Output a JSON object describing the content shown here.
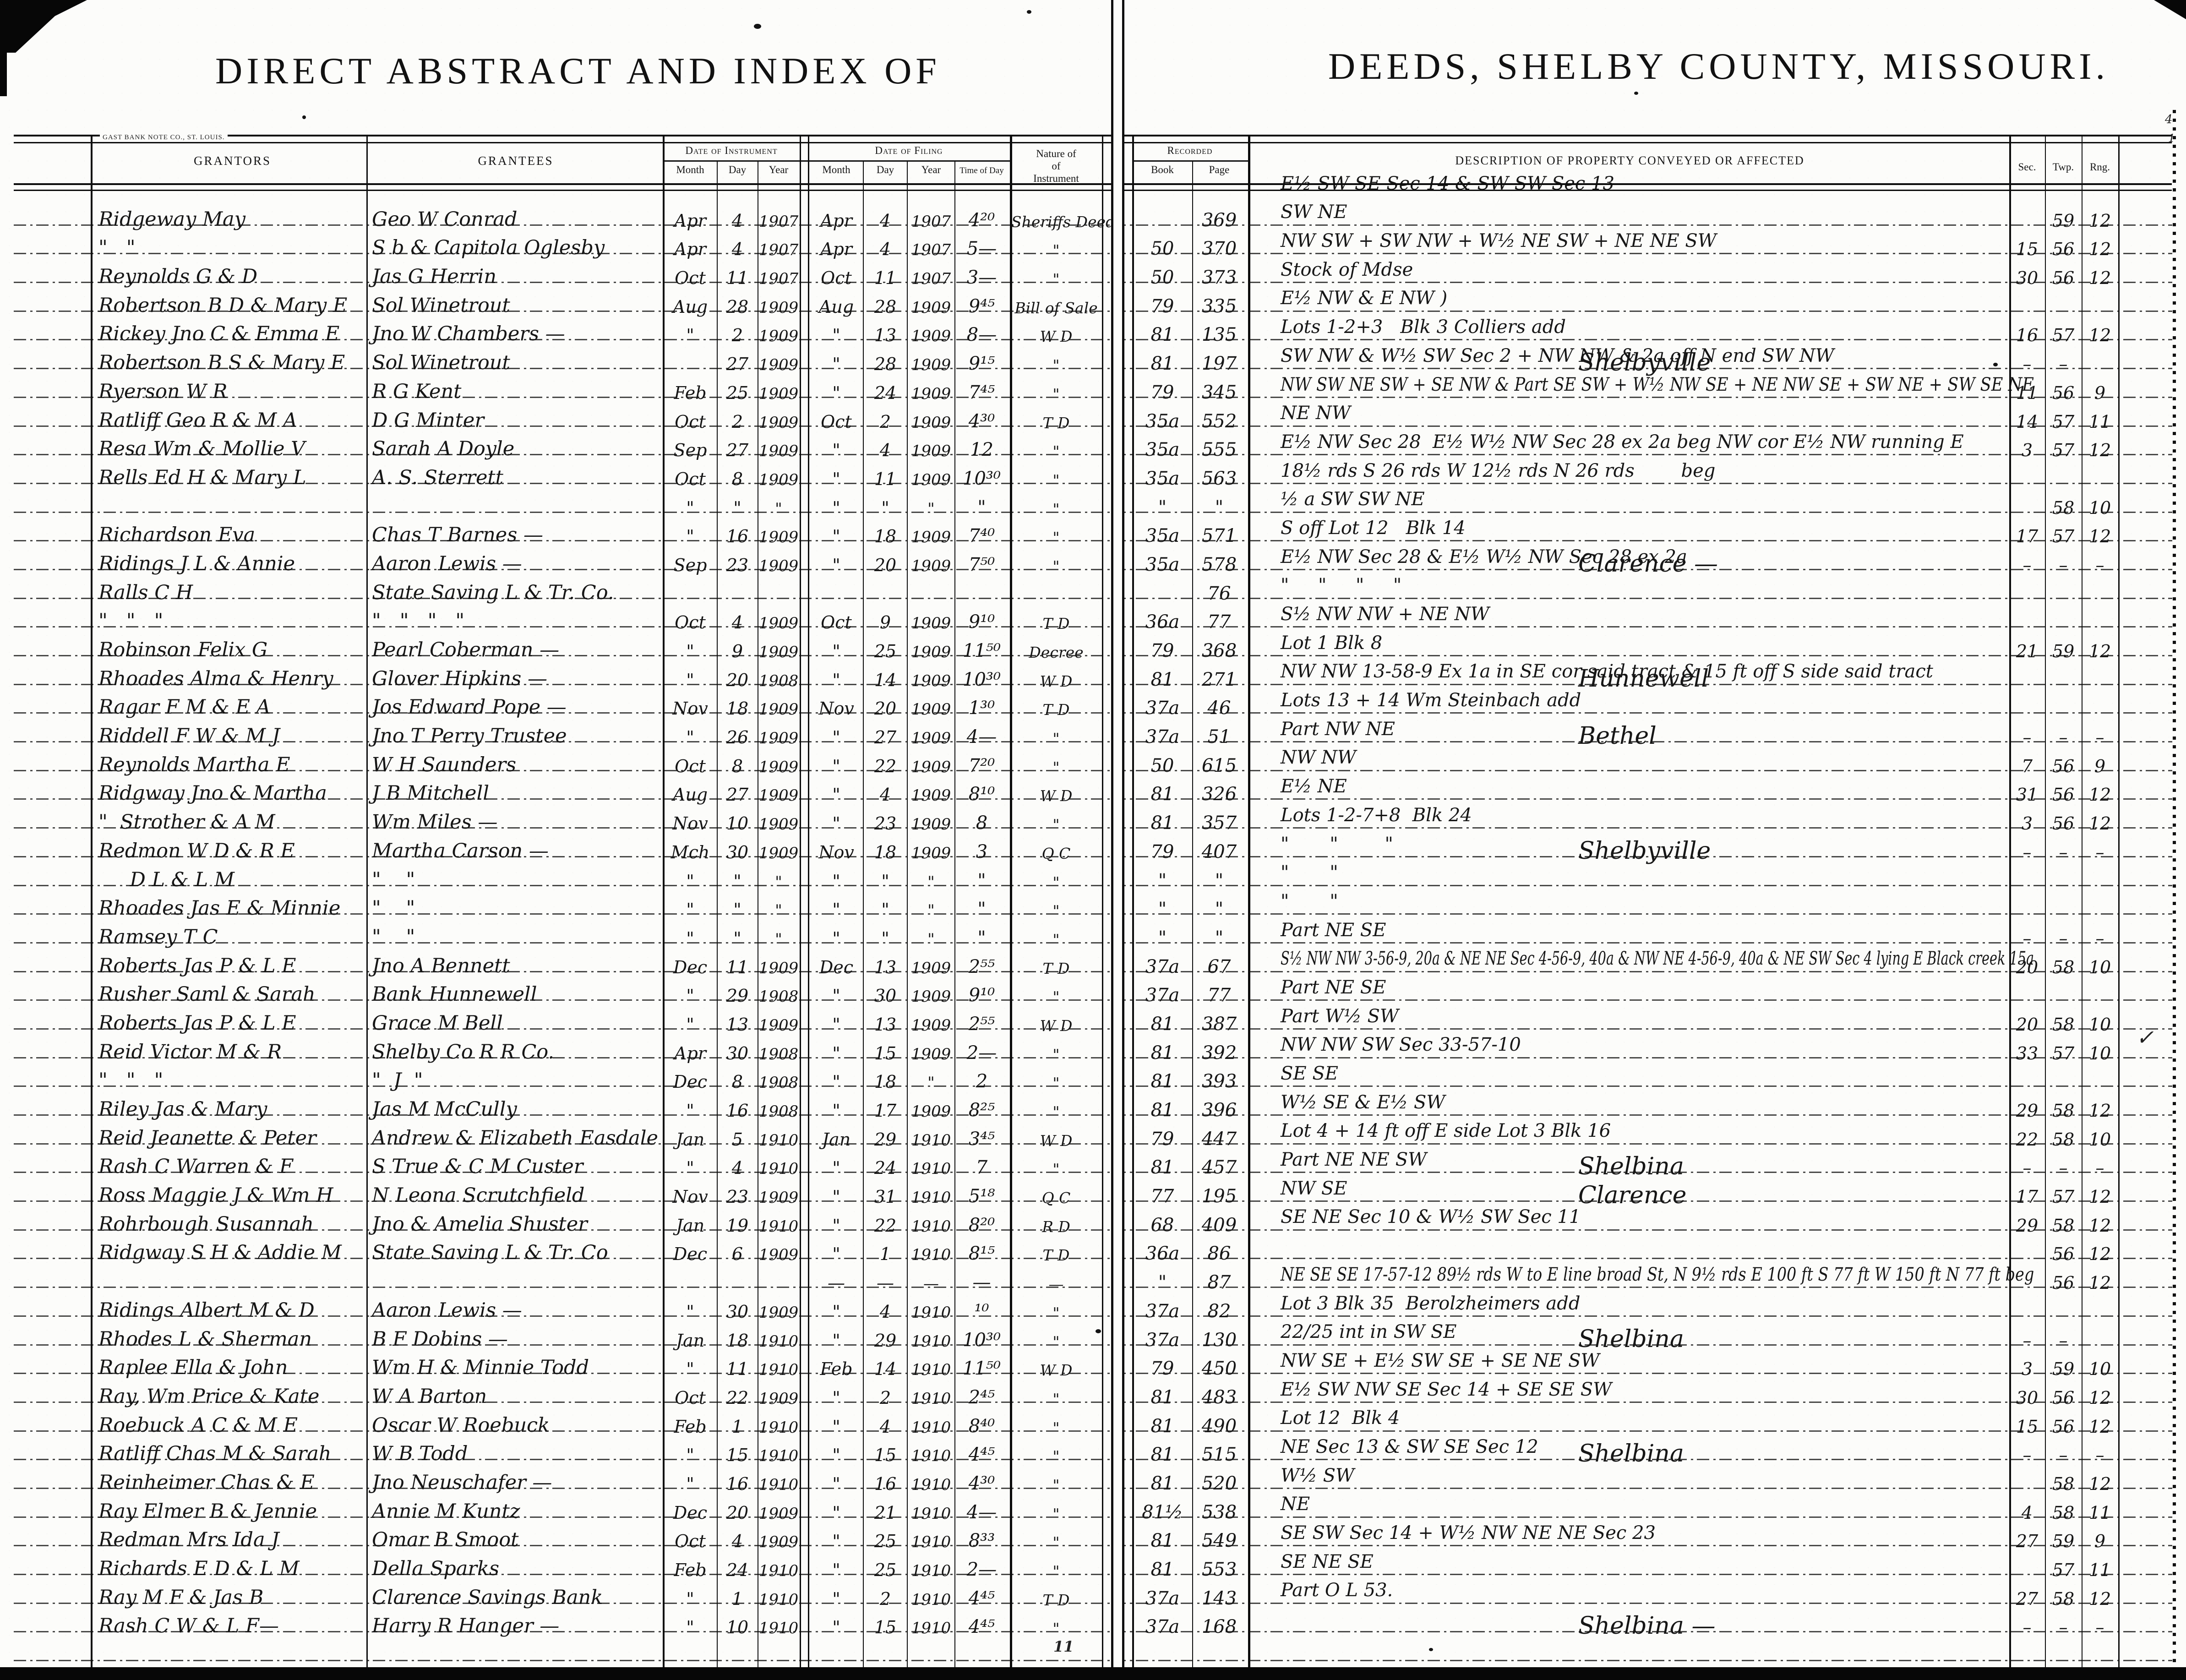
{
  "page": {
    "left_title": "DIRECT ABSTRACT AND INDEX OF",
    "right_title": "DEEDS, SHELBY COUNTY, MISSOURI.",
    "printer_mark": "GAST BANK NOTE CO., ST. LOUIS.",
    "page_number": "11",
    "check_mark": "✓",
    "corner_mark_top": "4",
    "corner_mark_bottom": "1"
  },
  "columns": {
    "grantors": "GRANTORS",
    "grantees": "GRANTEES",
    "date_of_instrument": "Date of Instrument",
    "date_of_filing": "Date of Filing",
    "month": "Month",
    "day": "Day",
    "year": "Year",
    "time_of_day": "Time of Day",
    "nature_line1": "Nature of",
    "nature_line2": "of",
    "nature_line3": "Instrument",
    "recorded": "Recorded",
    "book": "Book",
    "page": "Page",
    "description": "DESCRIPTION OF PROPERTY CONVEYED OR AFFECTED",
    "sec": "Sec.",
    "twp": "Twp.",
    "rng": "Rng."
  },
  "rows": [
    {
      "g": "Ridgeway May",
      "e": "Geo W Conrad",
      "im": "Apr",
      "id": "4",
      "iy": "1907",
      "fm": "Apr",
      "fd": "4",
      "fy": "1907",
      "ft": "4²⁰",
      "n": "Sheriffs Deed",
      "bk": "",
      "pg": "369",
      "d": "E½ SW SE Sec 14 & SW SW Sec 13",
      "town": "",
      "sec": "",
      "twp": "59",
      "rng": "12"
    },
    {
      "g": "\"   \"",
      "e": "S b & Capitola Oglesby",
      "im": "Apr",
      "id": "4",
      "iy": "1907",
      "fm": "Apr",
      "fd": "4",
      "fy": "1907",
      "ft": "5—",
      "n": "\"",
      "bk": "50",
      "pg": "370",
      "d": "SW NE",
      "town": "",
      "sec": "15",
      "twp": "56",
      "rng": "12"
    },
    {
      "g": "Reynolds G & D",
      "e": "Jas G Herrin",
      "im": "Oct",
      "id": "11",
      "iy": "1907",
      "fm": "Oct",
      "fd": "11",
      "fy": "1907",
      "ft": "3—",
      "n": "\"",
      "bk": "50",
      "pg": "373",
      "d": "NW SW + SW NW + W½ NE SW + NE NE SW",
      "town": "",
      "sec": "30",
      "twp": "56",
      "rng": "12"
    },
    {
      "g": "Robertson B D & Mary E",
      "e": "Sol Winetrout",
      "im": "Aug",
      "id": "28",
      "iy": "1909",
      "fm": "Aug",
      "fd": "28",
      "fy": "1909",
      "ft": "9⁴⁵",
      "n": "Bill of Sale",
      "bk": "79",
      "pg": "335",
      "d": "Stock of Mdse",
      "town": "",
      "sec": "",
      "twp": "",
      "rng": ""
    },
    {
      "g": "Rickey Jno C & Emma E",
      "e": "Jno W Chambers —",
      "im": "\"",
      "id": "2",
      "iy": "1909",
      "fm": "\"",
      "fd": "13",
      "fy": "1909",
      "ft": "8—",
      "n": "W D",
      "bk": "81",
      "pg": "135",
      "d": "E½ NW & E NW )",
      "town": "",
      "sec": "16",
      "twp": "57",
      "rng": "12"
    },
    {
      "g": "Robertson B S & Mary E",
      "e": "Sol Winetrout",
      "im": "",
      "id": "27",
      "iy": "1909",
      "fm": "\"",
      "fd": "28",
      "fy": "1909",
      "ft": "9¹⁵",
      "n": "\"",
      "bk": "81",
      "pg": "197",
      "d": "Lots 1-2+3   Blk 3 Colliers add",
      "town": "Shelbyville",
      "sec": "–",
      "twp": "–",
      "rng": ""
    },
    {
      "g": "Ryerson W R",
      "e": "R G Kent",
      "im": "Feb",
      "id": "25",
      "iy": "1909",
      "fm": "\"",
      "fd": "24",
      "fy": "1909",
      "ft": "7⁴⁵",
      "n": "\"",
      "bk": "79",
      "pg": "345",
      "d": "SW NW & W½ SW Sec 2 + NW NW & 2a off N end SW NW",
      "town": "",
      "sec": "11",
      "twp": "56",
      "rng": "9"
    },
    {
      "g": "Ratliff Geo R & M A",
      "e": "D G Minter",
      "im": "Oct",
      "id": "2",
      "iy": "1909",
      "fm": "Oct",
      "fd": "2",
      "fy": "1909",
      "ft": "4³⁰",
      "n": "T D",
      "bk": "35a",
      "pg": "552",
      "d": "NW SW NE SW + SE NW & Part SE SW + W½ NW SE + NE NW SE + SW NE + SW SE NE",
      "town": "",
      "sec": "14",
      "twp": "57",
      "rng": "11"
    },
    {
      "g": "Resa Wm & Mollie V",
      "e": "Sarah A Doyle",
      "im": "Sep",
      "id": "27",
      "iy": "1909",
      "fm": "\"",
      "fd": "4",
      "fy": "1909",
      "ft": "12",
      "n": "\"",
      "bk": "35a",
      "pg": "555",
      "d": "NE NW",
      "town": "",
      "sec": "3",
      "twp": "57",
      "rng": "12"
    },
    {
      "g": "Rells Ed H & Mary L",
      "e": "A. S. Sterrett",
      "im": "Oct",
      "id": "8",
      "iy": "1909",
      "fm": "\"",
      "fd": "11",
      "fy": "1909",
      "ft": "10³⁰",
      "n": "\"",
      "bk": "35a",
      "pg": "563",
      "d": "E½ NW Sec 28  E½ W½ NW Sec 28 ex 2a beg NW cor E½ NW running E",
      "town": "",
      "sec": "",
      "twp": "",
      "rng": ""
    },
    {
      "g": "",
      "e": "",
      "im": "\"",
      "id": "\"",
      "iy": "\"",
      "fm": "\"",
      "fd": "\"",
      "fy": "\"",
      "ft": "\"",
      "n": "\"",
      "bk": "\"",
      "pg": "\"",
      "d": "18½ rds S 26 rds W 12½ rds N 26 rds        beg",
      "town": "",
      "sec": "",
      "twp": "58",
      "rng": "10"
    },
    {
      "g": "Richardson Eva",
      "e": "Chas T Barnes —",
      "im": "\"",
      "id": "16",
      "iy": "1909",
      "fm": "\"",
      "fd": "18",
      "fy": "1909",
      "ft": "7⁴⁰",
      "n": "\"",
      "bk": "35a",
      "pg": "571",
      "d": "½ a SW SW NE",
      "town": "",
      "sec": "17",
      "twp": "57",
      "rng": "12"
    },
    {
      "g": "Ridings J L & Annie",
      "e": "Aaron Lewis —",
      "im": "Sep",
      "id": "23",
      "iy": "1909",
      "fm": "\"",
      "fd": "20",
      "fy": "1909",
      "ft": "7⁵⁰",
      "n": "\"",
      "bk": "35a",
      "pg": "578",
      "d": "S off Lot 12   Blk 14",
      "town": "Clarence —",
      "sec": "–",
      "twp": "–",
      "rng": "–"
    },
    {
      "g": "Ralls C H",
      "e": "State Saving L & Tr. Co.",
      "im": "",
      "id": "",
      "iy": "",
      "fm": "",
      "fd": "",
      "fy": "",
      "ft": "",
      "n": "",
      "bk": "",
      "pg": "76",
      "d": "E½ NW Sec 28 & E½ W½ NW Sec 28 ex 2a",
      "town": "",
      "sec": "",
      "twp": "",
      "rng": ""
    },
    {
      "g": "\"   \"   \"",
      "e": "\"   \"   \"   \"",
      "im": "Oct",
      "id": "4",
      "iy": "1909",
      "fm": "Oct",
      "fd": "9",
      "fy": "1909",
      "ft": "9¹⁰",
      "n": "T D",
      "bk": "36a",
      "pg": "77",
      "d": "\"     \"     \"     \"",
      "town": "",
      "sec": "",
      "twp": "",
      "rng": ""
    },
    {
      "g": "Robinson Felix G",
      "e": "Pearl Coberman —",
      "im": "\"",
      "id": "9",
      "iy": "1909",
      "fm": "\"",
      "fd": "25",
      "fy": "1909",
      "ft": "11⁵⁰",
      "n": "Decree",
      "bk": "79",
      "pg": "368",
      "d": "S½ NW NW + NE NW",
      "town": "",
      "sec": "21",
      "twp": "59",
      "rng": "12"
    },
    {
      "g": "Rhoades Alma & Henry",
      "e": "Glover Hipkins —",
      "im": "\"",
      "id": "20",
      "iy": "1908",
      "fm": "\"",
      "fd": "14",
      "fy": "1909",
      "ft": "10³⁰",
      "n": "W D",
      "bk": "81",
      "pg": "271",
      "d": "Lot 1 Blk 8",
      "town": "Hunnewell",
      "sec": "",
      "twp": "",
      "rng": ""
    },
    {
      "g": "Ragar F M & E A",
      "e": "Jos Edward Pope —",
      "im": "Nov",
      "id": "18",
      "iy": "1909",
      "fm": "Nov",
      "fd": "20",
      "fy": "1909",
      "ft": "1³⁰",
      "n": "T D",
      "bk": "37a",
      "pg": "46",
      "d": "NW NW 13-58-9 Ex 1a in SE cor said tract & 15 ft off S side said tract",
      "town": "",
      "sec": "",
      "twp": "",
      "rng": ""
    },
    {
      "g": "Riddell F W & M J",
      "e": "Jno T Perry Trustee",
      "im": "\"",
      "id": "26",
      "iy": "1909",
      "fm": "\"",
      "fd": "27",
      "fy": "1909",
      "ft": "4—",
      "n": "\"",
      "bk": "37a",
      "pg": "51",
      "d": "Lots 13 + 14 Wm Steinbach add",
      "town": "Bethel",
      "sec": "–",
      "twp": "–",
      "rng": "–"
    },
    {
      "g": "Reynolds Martha E",
      "e": "W H Saunders",
      "im": "Oct",
      "id": "8",
      "iy": "1909",
      "fm": "\"",
      "fd": "22",
      "fy": "1909",
      "ft": "7²⁰",
      "n": "\"",
      "bk": "50",
      "pg": "615",
      "d": "Part NW NE",
      "town": "",
      "sec": "7",
      "twp": "56",
      "rng": "9"
    },
    {
      "g": "Ridgway Jno & Martha",
      "e": "J B Mitchell",
      "im": "Aug",
      "id": "27",
      "iy": "1909",
      "fm": "\"",
      "fd": "4",
      "fy": "1909",
      "ft": "8¹⁰",
      "n": "W D",
      "bk": "81",
      "pg": "326",
      "d": "NW NW",
      "town": "",
      "sec": "31",
      "twp": "56",
      "rng": "12"
    },
    {
      "g": "\"  Strother & A M",
      "e": "Wm Miles —",
      "im": "Nov",
      "id": "10",
      "iy": "1909",
      "fm": "\"",
      "fd": "23",
      "fy": "1909",
      "ft": "8",
      "n": "\"",
      "bk": "81",
      "pg": "357",
      "d": "E½ NE",
      "town": "",
      "sec": "3",
      "twp": "56",
      "rng": "12"
    },
    {
      "g": "Redmon W D & R E",
      "e": "Martha Carson —",
      "im": "Mch",
      "id": "30",
      "iy": "1909",
      "fm": "Nov",
      "fd": "18",
      "fy": "1909",
      "ft": "3",
      "n": "Q C",
      "bk": "79",
      "pg": "407",
      "d": "Lots 1-2-7+8  Blk 24",
      "town": "Shelbyville",
      "sec": "–",
      "twp": "–",
      "rng": "–"
    },
    {
      "g": "     D L & L M",
      "e": "\"    \"",
      "im": "\"",
      "id": "\"",
      "iy": "\"",
      "fm": "\"",
      "fd": "\"",
      "fy": "\"",
      "ft": "\"",
      "n": "\"",
      "bk": "\"",
      "pg": "\"",
      "d": "\"       \"        \"",
      "town": "",
      "sec": "",
      "twp": "",
      "rng": ""
    },
    {
      "g": "Rhoades Jas E & Minnie",
      "e": "\"    \"",
      "im": "\"",
      "id": "\"",
      "iy": "\"",
      "fm": "\"",
      "fd": "\"",
      "fy": "\"",
      "ft": "\"",
      "n": "\"",
      "bk": "\"",
      "pg": "\"",
      "d": "\"       \"",
      "town": "",
      "sec": "",
      "twp": "",
      "rng": ""
    },
    {
      "g": "Ramsey T C",
      "e": "\"    \"",
      "im": "\"",
      "id": "\"",
      "iy": "\"",
      "fm": "\"",
      "fd": "\"",
      "fy": "\"",
      "ft": "\"",
      "n": "\"",
      "bk": "\"",
      "pg": "\"",
      "d": "\"       \"",
      "town": "",
      "sec": "–",
      "twp": "–",
      "rng": "–"
    },
    {
      "g": "Roberts Jas P & L E",
      "e": "Jno A Bennett",
      "im": "Dec",
      "id": "11",
      "iy": "1909",
      "fm": "Dec",
      "fd": "13",
      "fy": "1909",
      "ft": "2⁵⁵",
      "n": "T D",
      "bk": "37a",
      "pg": "67",
      "d": "Part NE SE",
      "town": "",
      "sec": "20",
      "twp": "58",
      "rng": "10"
    },
    {
      "g": "Rusher Saml & Sarah",
      "e": "Bank Hunnewell",
      "im": "\"",
      "id": "29",
      "iy": "1908",
      "fm": "\"",
      "fd": "30",
      "fy": "1909",
      "ft": "9¹⁰",
      "n": "\"",
      "bk": "37a",
      "pg": "77",
      "d": "S½ NW NW 3-56-9, 20a & NE NE Sec 4-56-9, 40a & NW NE 4-56-9, 40a & NE SW Sec 4 lying E Black creek 15a",
      "town": "",
      "sec": "",
      "twp": "",
      "rng": ""
    },
    {
      "g": "Roberts Jas P & L E",
      "e": "Grace M Bell",
      "im": "\"",
      "id": "13",
      "iy": "1909",
      "fm": "\"",
      "fd": "13",
      "fy": "1909",
      "ft": "2⁵⁵",
      "n": "W D",
      "bk": "81",
      "pg": "387",
      "d": "Part NE SE",
      "town": "",
      "sec": "20",
      "twp": "58",
      "rng": "10"
    },
    {
      "g": "Reid Victor M & R",
      "e": "Shelby Co R R Co.",
      "im": "Apr",
      "id": "30",
      "iy": "1908",
      "fm": "\"",
      "fd": "15",
      "fy": "1909",
      "ft": "2—",
      "n": "\"",
      "bk": "81",
      "pg": "392",
      "d": "Part W½ SW",
      "town": "",
      "sec": "33",
      "twp": "57",
      "rng": "10"
    },
    {
      "g": "\"   \"   \"",
      "e": "\"  J  \"",
      "im": "Dec",
      "id": "8",
      "iy": "1908",
      "fm": "\"",
      "fd": "18",
      "fy": "\"",
      "ft": "2",
      "n": "\"",
      "bk": "81",
      "pg": "393",
      "d": "NW NW SW Sec 33-57-10",
      "town": "",
      "sec": "",
      "twp": "",
      "rng": ""
    },
    {
      "g": "Riley Jas & Mary",
      "e": "Jas M McCully",
      "im": "\"",
      "id": "16",
      "iy": "1908",
      "fm": "\"",
      "fd": "17",
      "fy": "1909",
      "ft": "8²⁵",
      "n": "\"",
      "bk": "81",
      "pg": "396",
      "d": "SE SE",
      "town": "",
      "sec": "29",
      "twp": "58",
      "rng": "12"
    },
    {
      "g": "Reid Jeanette & Peter",
      "e": "Andrew & Elizabeth Easdale",
      "im": "Jan",
      "id": "5",
      "iy": "1910",
      "fm": "Jan",
      "fd": "29",
      "fy": "1910",
      "ft": "3⁴⁵",
      "n": "W D",
      "bk": "79",
      "pg": "447",
      "d": "W½ SE & E½ SW",
      "town": "",
      "sec": "22",
      "twp": "58",
      "rng": "10"
    },
    {
      "g": "Rash C Warren & F",
      "e": "S True & C M Custer",
      "im": "\"",
      "id": "4",
      "iy": "1910",
      "fm": "\"",
      "fd": "24",
      "fy": "1910",
      "ft": "7",
      "n": "\"",
      "bk": "81",
      "pg": "457",
      "d": "Lot 4 + 14 ft off E side Lot 3 Blk 16",
      "town": "Shelbina",
      "sec": "–",
      "twp": "–",
      "rng": "–"
    },
    {
      "g": "Ross Maggie J & Wm H",
      "e": "N Leona Scrutchfield",
      "im": "Nov",
      "id": "23",
      "iy": "1909",
      "fm": "\"",
      "fd": "31",
      "fy": "1910",
      "ft": "5¹⁸",
      "n": "Q C",
      "bk": "77",
      "pg": "195",
      "d": "Part NE NE SW",
      "town": "Clarence",
      "sec": "17",
      "twp": "57",
      "rng": "12"
    },
    {
      "g": "Rohrbough Susannah",
      "e": "Jno & Amelia Shuster",
      "im": "Jan",
      "id": "19",
      "iy": "1910",
      "fm": "\"",
      "fd": "22",
      "fy": "1910",
      "ft": "8²⁰",
      "n": "R D",
      "bk": "68",
      "pg": "409",
      "d": "NW SE",
      "town": "",
      "sec": "29",
      "twp": "58",
      "rng": "12"
    },
    {
      "g": "Ridgway S H & Addie M",
      "e": "State Saving L & Tr. Co",
      "im": "Dec",
      "id": "6",
      "iy": "1909",
      "fm": "\"",
      "fd": "1",
      "fy": "1910",
      "ft": "8¹⁵",
      "n": "T D",
      "bk": "36a",
      "pg": "86",
      "d": "SE NE Sec 10 & W½ SW Sec 11",
      "town": "",
      "sec": "",
      "twp": "56",
      "rng": "12"
    },
    {
      "g": "",
      "e": "",
      "im": "",
      "id": "",
      "iy": "",
      "fm": "—",
      "fd": "—",
      "fy": "—",
      "ft": "—",
      "n": "—",
      "bk": "\"",
      "pg": "87",
      "d": "",
      "town": "",
      "sec": "",
      "twp": "56",
      "rng": "12"
    },
    {
      "g": "Ridings Albert M & D",
      "e": "Aaron Lewis —",
      "im": "\"",
      "id": "30",
      "iy": "1909",
      "fm": "\"",
      "fd": "4",
      "fy": "1910",
      "ft": "¹⁰",
      "n": "\"",
      "bk": "37a",
      "pg": "82",
      "d": "NE SE SE 17-57-12 89½ rds W to E line broad St, N 9½ rds E 100 ft S 77 ft W 150 ft N 77 ft beg",
      "town": "",
      "sec": "",
      "twp": "",
      "rng": ""
    },
    {
      "g": "Rhodes L & Sherman",
      "e": "B F Dobins —",
      "im": "Jan",
      "id": "18",
      "iy": "1910",
      "fm": "\"",
      "fd": "29",
      "fy": "1910",
      "ft": "10³⁰",
      "n": "\"",
      "bk": "37a",
      "pg": "130",
      "d": "Lot 3 Blk 35  Berolzheimers add",
      "town": "Shelbina",
      "sec": "–",
      "twp": "–",
      "rng": ""
    },
    {
      "g": "Raplee Ella & John",
      "e": "Wm H & Minnie Todd",
      "im": "\"",
      "id": "11",
      "iy": "1910",
      "fm": "Feb",
      "fd": "14",
      "fy": "1910",
      "ft": "11⁵⁰",
      "n": "W D",
      "bk": "79",
      "pg": "450",
      "d": "22/25 int in SW SE",
      "town": "",
      "sec": "3",
      "twp": "59",
      "rng": "10"
    },
    {
      "g": "Ray, Wm Price & Kate",
      "e": "W A Barton",
      "im": "Oct",
      "id": "22",
      "iy": "1909",
      "fm": "\"",
      "fd": "2",
      "fy": "1910",
      "ft": "2⁴⁵",
      "n": "\"",
      "bk": "81",
      "pg": "483",
      "d": "NW SE + E½ SW SE + SE NE SW",
      "town": "",
      "sec": "30",
      "twp": "56",
      "rng": "12"
    },
    {
      "g": "Roebuck A C & M E",
      "e": "Oscar W Roebuck",
      "im": "Feb",
      "id": "1",
      "iy": "1910",
      "fm": "\"",
      "fd": "4",
      "fy": "1910",
      "ft": "8⁴⁰",
      "n": "\"",
      "bk": "81",
      "pg": "490",
      "d": "E½ SW NW SE Sec 14 + SE SE SW",
      "town": "",
      "sec": "15",
      "twp": "56",
      "rng": "12"
    },
    {
      "g": "Ratliff Chas M & Sarah",
      "e": "W B Todd",
      "im": "\"",
      "id": "15",
      "iy": "1910",
      "fm": "\"",
      "fd": "15",
      "fy": "1910",
      "ft": "4⁴⁵",
      "n": "\"",
      "bk": "81",
      "pg": "515",
      "d": "Lot 12  Blk 4",
      "town": "Shelbina",
      "sec": "–",
      "twp": "–",
      "rng": "–"
    },
    {
      "g": "Reinheimer Chas & E",
      "e": "Jno Neuschafer —",
      "im": "\"",
      "id": "16",
      "iy": "1910",
      "fm": "\"",
      "fd": "16",
      "fy": "1910",
      "ft": "4³⁰",
      "n": "\"",
      "bk": "81",
      "pg": "520",
      "d": "NE Sec 13 & SW SE Sec 12",
      "town": "",
      "sec": "",
      "twp": "58",
      "rng": "12"
    },
    {
      "g": "Ray Elmer B & Jennie",
      "e": "Annie M Kuntz",
      "im": "Dec",
      "id": "20",
      "iy": "1909",
      "fm": "\"",
      "fd": "21",
      "fy": "1910",
      "ft": "4—",
      "n": "\"",
      "bk": "81½",
      "pg": "538",
      "d": "W½ SW",
      "town": "",
      "sec": "4",
      "twp": "58",
      "rng": "11"
    },
    {
      "g": "Redman Mrs Ida J",
      "e": "Omar B Smoot",
      "im": "Oct",
      "id": "4",
      "iy": "1909",
      "fm": "\"",
      "fd": "25",
      "fy": "1910",
      "ft": "8³³",
      "n": "\"",
      "bk": "81",
      "pg": "549",
      "d": "NE",
      "town": "",
      "sec": "27",
      "twp": "59",
      "rng": "9"
    },
    {
      "g": "Richards E D & L M",
      "e": "Della Sparks",
      "im": "Feb",
      "id": "24",
      "iy": "1910",
      "fm": "\"",
      "fd": "25",
      "fy": "1910",
      "ft": "2—",
      "n": "\"",
      "bk": "81",
      "pg": "553",
      "d": "SE SW Sec 14 + W½ NW NE NE Sec 23",
      "town": "",
      "sec": "",
      "twp": "57",
      "rng": "11"
    },
    {
      "g": "Ray M F & Jas B",
      "e": "Clarence Savings Bank",
      "im": "\"",
      "id": "1",
      "iy": "1910",
      "fm": "\"",
      "fd": "2",
      "fy": "1910",
      "ft": "4⁴⁵",
      "n": "T D",
      "bk": "37a",
      "pg": "143",
      "d": "SE NE SE",
      "town": "",
      "sec": "27",
      "twp": "58",
      "rng": "12"
    },
    {
      "g": "Rash C W & L F—",
      "e": "Harry R Hanger —",
      "im": "\"",
      "id": "10",
      "iy": "1910",
      "fm": "\"",
      "fd": "15",
      "fy": "1910",
      "ft": "4⁴⁵",
      "n": "\"",
      "bk": "37a",
      "pg": "168",
      "d": "Part O L 53.",
      "town": "Shelbina —",
      "sec": "–",
      "twp": "–",
      "rng": "–"
    }
  ]
}
